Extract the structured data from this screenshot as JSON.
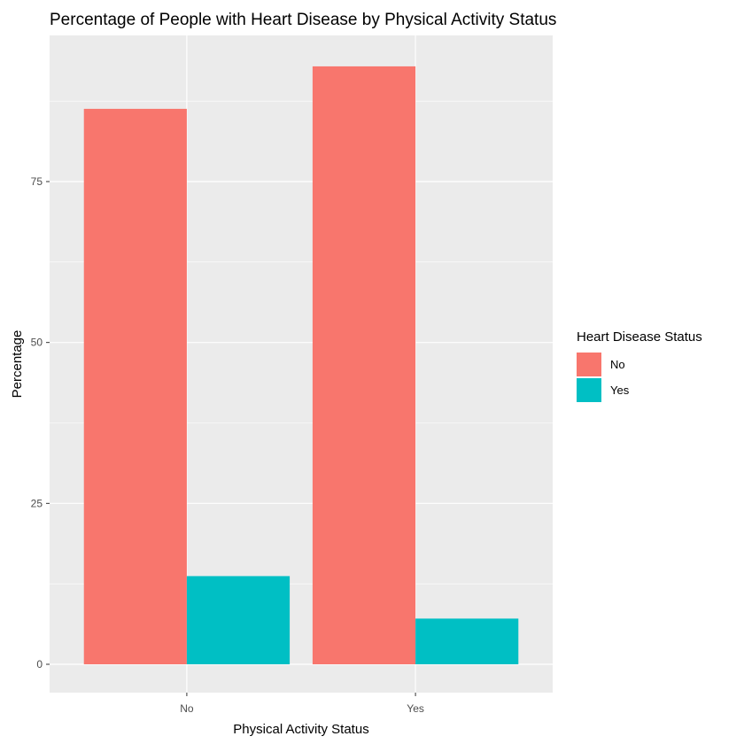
{
  "chart_data": {
    "type": "bar",
    "title": "Percentage of People with Heart Disease by Physical Activity Status",
    "xlabel": "Physical Activity Status",
    "ylabel": "Percentage",
    "categories": [
      "No",
      "Yes"
    ],
    "series": [
      {
        "name": "No",
        "values": [
          86.3,
          92.9
        ],
        "color": "#F8766D"
      },
      {
        "name": "Yes",
        "values": [
          13.7,
          7.1
        ],
        "color": "#00BFC4"
      }
    ],
    "ylim": [
      0,
      100
    ],
    "yticks": [
      0,
      25,
      50,
      75
    ],
    "grid": true,
    "legend": {
      "title": "Heart Disease Status",
      "position": "right"
    },
    "colors": {
      "panel": "#EBEBEB",
      "grid": "#FFFFFF"
    }
  }
}
